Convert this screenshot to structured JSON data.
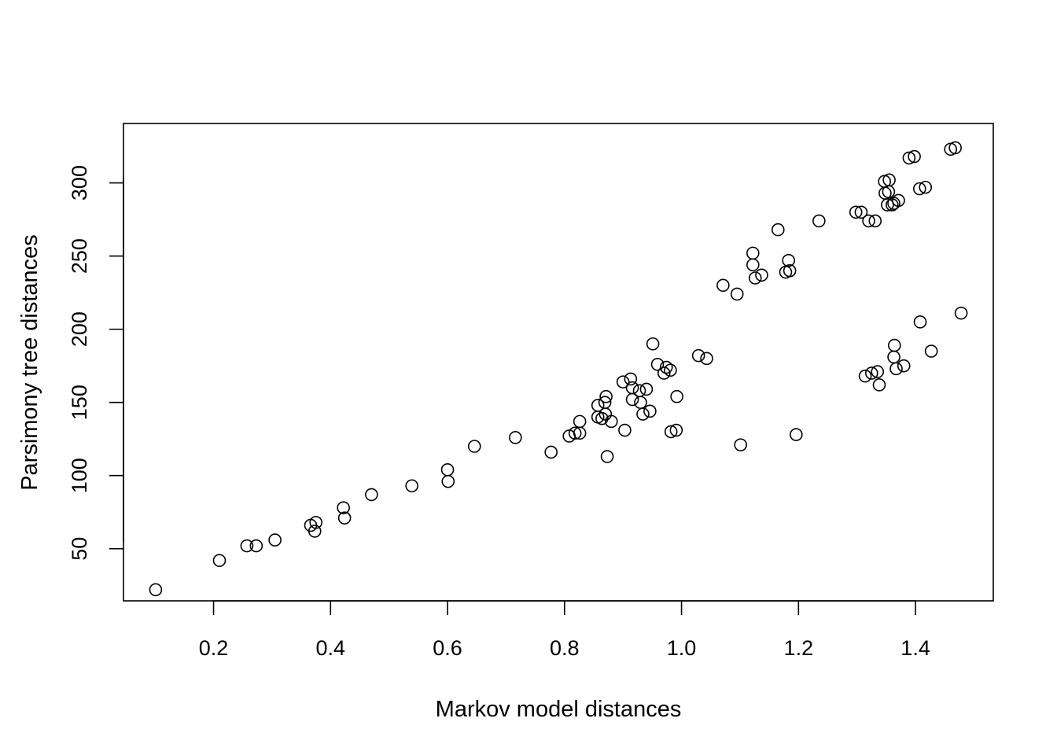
{
  "chart_data": {
    "type": "scatter",
    "title": "",
    "xlabel": "Markov model distances",
    "ylabel": "Parsimony tree distances",
    "xlim": [
      0.046,
      1.533
    ],
    "ylim": [
      14.4,
      340.6
    ],
    "xticks": [
      0.2,
      0.4,
      0.6,
      0.8,
      1.0,
      1.2,
      1.4
    ],
    "xtick_labels": [
      "0.2",
      "0.4",
      "0.6",
      "0.8",
      "1.0",
      "1.2",
      "1.4"
    ],
    "yticks": [
      50,
      100,
      150,
      200,
      250,
      300
    ],
    "ytick_labels": [
      "50",
      "100",
      "150",
      "200",
      "250",
      "300"
    ],
    "grid": false,
    "legend": "none",
    "marker": "open-circle",
    "colors": {
      "marker_stroke": "#000000",
      "axis": "#000000",
      "background": "#ffffff"
    },
    "series": [
      {
        "points": [
          [
            0.101,
            22
          ],
          [
            0.21,
            42
          ],
          [
            0.257,
            52
          ],
          [
            0.273,
            52
          ],
          [
            0.305,
            56
          ],
          [
            0.366,
            66
          ],
          [
            0.375,
            68
          ],
          [
            0.373,
            62
          ],
          [
            0.422,
            78
          ],
          [
            0.424,
            71
          ],
          [
            0.47,
            87
          ],
          [
            0.539,
            93
          ],
          [
            0.6,
            104
          ],
          [
            0.601,
            96
          ],
          [
            0.646,
            120
          ],
          [
            0.716,
            126
          ],
          [
            0.777,
            116
          ],
          [
            0.808,
            127
          ],
          [
            0.818,
            129
          ],
          [
            0.826,
            129
          ],
          [
            0.826,
            137
          ],
          [
            0.857,
            148
          ],
          [
            0.857,
            140
          ],
          [
            0.864,
            139
          ],
          [
            0.869,
            150
          ],
          [
            0.87,
            142
          ],
          [
            0.871,
            154
          ],
          [
            0.873,
            113
          ],
          [
            0.88,
            137
          ],
          [
            0.9,
            164
          ],
          [
            0.903,
            131
          ],
          [
            0.913,
            166
          ],
          [
            0.916,
            160
          ],
          [
            0.916,
            152
          ],
          [
            0.928,
            158
          ],
          [
            0.93,
            150
          ],
          [
            0.934,
            142
          ],
          [
            0.94,
            159
          ],
          [
            0.946,
            144
          ],
          [
            0.951,
            190
          ],
          [
            0.959,
            176
          ],
          [
            0.97,
            170
          ],
          [
            0.974,
            174
          ],
          [
            0.981,
            172
          ],
          [
            0.982,
            130
          ],
          [
            0.991,
            131
          ],
          [
            0.992,
            154
          ],
          [
            1.029,
            182
          ],
          [
            1.043,
            180
          ],
          [
            1.071,
            230
          ],
          [
            1.095,
            224
          ],
          [
            1.101,
            121
          ],
          [
            1.122,
            252
          ],
          [
            1.122,
            244
          ],
          [
            1.126,
            235
          ],
          [
            1.137,
            237
          ],
          [
            1.165,
            268
          ],
          [
            1.178,
            239
          ],
          [
            1.183,
            247
          ],
          [
            1.185,
            240
          ],
          [
            1.196,
            128
          ],
          [
            1.235,
            274
          ],
          [
            1.298,
            280
          ],
          [
            1.307,
            280
          ],
          [
            1.314,
            168
          ],
          [
            1.32,
            274
          ],
          [
            1.325,
            170
          ],
          [
            1.331,
            274
          ],
          [
            1.335,
            171
          ],
          [
            1.338,
            162
          ],
          [
            1.347,
            301
          ],
          [
            1.348,
            293
          ],
          [
            1.352,
            285
          ],
          [
            1.354,
            294
          ],
          [
            1.355,
            302
          ],
          [
            1.36,
            285
          ],
          [
            1.363,
            286
          ],
          [
            1.363,
            181
          ],
          [
            1.364,
            189
          ],
          [
            1.367,
            173
          ],
          [
            1.371,
            288
          ],
          [
            1.38,
            175
          ],
          [
            1.389,
            317
          ],
          [
            1.398,
            318
          ],
          [
            1.407,
            296
          ],
          [
            1.408,
            205
          ],
          [
            1.417,
            297
          ],
          [
            1.427,
            185
          ],
          [
            1.46,
            323
          ],
          [
            1.468,
            324
          ],
          [
            1.478,
            211
          ]
        ]
      }
    ]
  }
}
